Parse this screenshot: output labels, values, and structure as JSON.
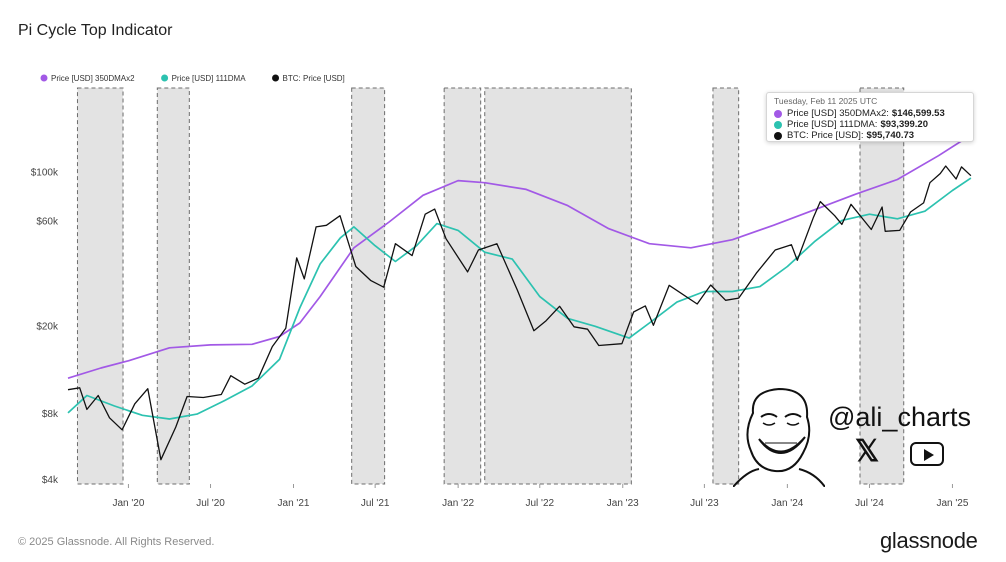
{
  "title": "Pi Cycle Top Indicator",
  "footer": {
    "copyright": "© 2025 Glassnode. All Rights Reserved.",
    "brand": "glassnode"
  },
  "watermark": {
    "handle": "@ali_charts",
    "icons": [
      "x-logo-icon",
      "youtube-icon",
      "trollface-avatar"
    ]
  },
  "tooltip": {
    "date": "Tuesday, Feb 11 2025 UTC",
    "rows": [
      {
        "label": "Price [USD] 350DMAx2:",
        "value": "$146,599.53",
        "color": "#a259e6"
      },
      {
        "label": "Price [USD] 111DMA:",
        "value": "$93,399.20",
        "color": "#2cc2b0"
      },
      {
        "label": "BTC: Price [USD]:",
        "value": "$95,740.73",
        "color": "#111111"
      }
    ]
  },
  "chart_data": {
    "type": "line",
    "y_scale": "log",
    "ylim": [
      3800,
      250000
    ],
    "xlim": [
      "2019-08-20",
      "2025-02-20"
    ],
    "y_ticks": [
      {
        "value": 4000,
        "label": "$4k"
      },
      {
        "value": 8000,
        "label": "$8k"
      },
      {
        "value": 20000,
        "label": "$20k"
      },
      {
        "value": 60000,
        "label": "$60k"
      },
      {
        "value": 100000,
        "label": "$100k"
      }
    ],
    "x_ticks": [
      {
        "date": "2020-01-01",
        "label": "Jan '20"
      },
      {
        "date": "2020-07-01",
        "label": "Jul '20"
      },
      {
        "date": "2021-01-01",
        "label": "Jan '21"
      },
      {
        "date": "2021-07-01",
        "label": "Jul '21"
      },
      {
        "date": "2022-01-01",
        "label": "Jan '22"
      },
      {
        "date": "2022-07-01",
        "label": "Jul '22"
      },
      {
        "date": "2023-01-01",
        "label": "Jan '23"
      },
      {
        "date": "2023-07-01",
        "label": "Jul '23"
      },
      {
        "date": "2024-01-01",
        "label": "Jan '24"
      },
      {
        "date": "2024-07-01",
        "label": "Jul '24"
      },
      {
        "date": "2025-01-01",
        "label": "Jan '25"
      }
    ],
    "legend_position": "top-left",
    "shaded_regions": [
      [
        "2019-09-10",
        "2019-12-20"
      ],
      [
        "2020-03-05",
        "2020-05-15"
      ],
      [
        "2021-05-10",
        "2021-07-22"
      ],
      [
        "2021-12-01",
        "2022-02-20"
      ],
      [
        "2022-03-01",
        "2023-01-20"
      ],
      [
        "2023-07-20",
        "2023-09-15"
      ],
      [
        "2024-06-10",
        "2024-09-15"
      ]
    ],
    "series": [
      {
        "name": "Price [USD] 350DMAx2",
        "color": "#a259e6",
        "points": [
          [
            "2019-08-20",
            11500
          ],
          [
            "2019-11-01",
            12800
          ],
          [
            "2020-01-01",
            13800
          ],
          [
            "2020-04-01",
            15800
          ],
          [
            "2020-07-01",
            16300
          ],
          [
            "2020-10-01",
            16400
          ],
          [
            "2020-12-01",
            17800
          ],
          [
            "2021-01-15",
            20500
          ],
          [
            "2021-03-01",
            27000
          ],
          [
            "2021-05-15",
            45000
          ],
          [
            "2021-08-01",
            59000
          ],
          [
            "2021-10-15",
            78000
          ],
          [
            "2022-01-01",
            91000
          ],
          [
            "2022-03-01",
            89000
          ],
          [
            "2022-06-01",
            83000
          ],
          [
            "2022-09-01",
            70000
          ],
          [
            "2022-12-01",
            55000
          ],
          [
            "2023-03-01",
            47000
          ],
          [
            "2023-06-01",
            45000
          ],
          [
            "2023-09-01",
            49000
          ],
          [
            "2023-12-01",
            57000
          ],
          [
            "2024-03-01",
            67000
          ],
          [
            "2024-06-01",
            79000
          ],
          [
            "2024-09-01",
            92000
          ],
          [
            "2024-12-01",
            118000
          ],
          [
            "2025-02-11",
            146600
          ]
        ]
      },
      {
        "name": "Price [USD] 111DMA",
        "color": "#2cc2b0",
        "points": [
          [
            "2019-08-20",
            8000
          ],
          [
            "2019-10-01",
            9600
          ],
          [
            "2019-12-01",
            8600
          ],
          [
            "2020-02-01",
            7800
          ],
          [
            "2020-04-01",
            7500
          ],
          [
            "2020-06-01",
            7900
          ],
          [
            "2020-08-01",
            9100
          ],
          [
            "2020-10-01",
            10600
          ],
          [
            "2020-12-01",
            14000
          ],
          [
            "2021-01-15",
            24000
          ],
          [
            "2021-03-01",
            38000
          ],
          [
            "2021-04-15",
            50000
          ],
          [
            "2021-05-15",
            56000
          ],
          [
            "2021-07-01",
            46000
          ],
          [
            "2021-08-15",
            39000
          ],
          [
            "2021-10-01",
            46000
          ],
          [
            "2021-11-15",
            58000
          ],
          [
            "2022-01-01",
            54000
          ],
          [
            "2022-03-01",
            43000
          ],
          [
            "2022-05-01",
            40000
          ],
          [
            "2022-07-01",
            27000
          ],
          [
            "2022-09-01",
            21500
          ],
          [
            "2022-11-01",
            19800
          ],
          [
            "2023-01-15",
            17500
          ],
          [
            "2023-03-01",
            20500
          ],
          [
            "2023-05-01",
            25500
          ],
          [
            "2023-07-01",
            28500
          ],
          [
            "2023-09-01",
            28500
          ],
          [
            "2023-11-01",
            30000
          ],
          [
            "2024-01-01",
            37000
          ],
          [
            "2024-03-01",
            48000
          ],
          [
            "2024-05-01",
            60000
          ],
          [
            "2024-07-01",
            64000
          ],
          [
            "2024-09-01",
            61000
          ],
          [
            "2024-11-01",
            66000
          ],
          [
            "2025-01-01",
            82000
          ],
          [
            "2025-02-11",
            93400
          ]
        ]
      },
      {
        "name": "BTC: Price [USD]",
        "color": "#111111",
        "points": [
          [
            "2019-08-20",
            10200
          ],
          [
            "2019-09-15",
            10400
          ],
          [
            "2019-10-01",
            8300
          ],
          [
            "2019-10-26",
            9600
          ],
          [
            "2019-11-20",
            7600
          ],
          [
            "2019-12-18",
            6700
          ],
          [
            "2020-01-15",
            8800
          ],
          [
            "2020-02-13",
            10300
          ],
          [
            "2020-03-13",
            4900
          ],
          [
            "2020-04-15",
            6900
          ],
          [
            "2020-05-10",
            9500
          ],
          [
            "2020-06-15",
            9400
          ],
          [
            "2020-07-25",
            9700
          ],
          [
            "2020-08-15",
            11800
          ],
          [
            "2020-09-15",
            10800
          ],
          [
            "2020-10-15",
            11500
          ],
          [
            "2020-11-15",
            16000
          ],
          [
            "2020-12-15",
            19400
          ],
          [
            "2021-01-08",
            40500
          ],
          [
            "2021-01-25",
            32500
          ],
          [
            "2021-02-20",
            56000
          ],
          [
            "2021-03-15",
            57000
          ],
          [
            "2021-04-14",
            63000
          ],
          [
            "2021-05-19",
            37000
          ],
          [
            "2021-06-21",
            32000
          ],
          [
            "2021-07-20",
            29800
          ],
          [
            "2021-08-15",
            47000
          ],
          [
            "2021-09-21",
            41500
          ],
          [
            "2021-10-20",
            64000
          ],
          [
            "2021-11-10",
            67500
          ],
          [
            "2021-12-05",
            49500
          ],
          [
            "2022-01-22",
            35000
          ],
          [
            "2022-02-15",
            44000
          ],
          [
            "2022-03-28",
            47000
          ],
          [
            "2022-05-12",
            29000
          ],
          [
            "2022-06-18",
            18900
          ],
          [
            "2022-07-15",
            21000
          ],
          [
            "2022-08-14",
            24400
          ],
          [
            "2022-09-15",
            19700
          ],
          [
            "2022-10-15",
            19200
          ],
          [
            "2022-11-09",
            16200
          ],
          [
            "2022-12-30",
            16500
          ],
          [
            "2023-01-25",
            23000
          ],
          [
            "2023-02-20",
            24500
          ],
          [
            "2023-03-10",
            20000
          ],
          [
            "2023-04-14",
            30400
          ],
          [
            "2023-06-15",
            25000
          ],
          [
            "2023-07-15",
            30500
          ],
          [
            "2023-08-17",
            26000
          ],
          [
            "2023-09-15",
            26600
          ],
          [
            "2023-10-24",
            34500
          ],
          [
            "2023-12-05",
            44000
          ],
          [
            "2024-01-10",
            46500
          ],
          [
            "2024-01-23",
            39500
          ],
          [
            "2024-02-28",
            62000
          ],
          [
            "2024-03-14",
            73000
          ],
          [
            "2024-04-15",
            63000
          ],
          [
            "2024-05-01",
            57500
          ],
          [
            "2024-05-21",
            71000
          ],
          [
            "2024-07-05",
            54500
          ],
          [
            "2024-07-29",
            69000
          ],
          [
            "2024-08-05",
            53500
          ],
          [
            "2024-09-06",
            54000
          ],
          [
            "2024-09-30",
            65500
          ],
          [
            "2024-10-29",
            72000
          ],
          [
            "2024-11-12",
            89000
          ],
          [
            "2024-12-05",
            98000
          ],
          [
            "2024-12-17",
            106000
          ],
          [
            "2025-01-09",
            92500
          ],
          [
            "2025-01-21",
            105000
          ],
          [
            "2025-02-11",
            95700
          ]
        ]
      }
    ]
  }
}
